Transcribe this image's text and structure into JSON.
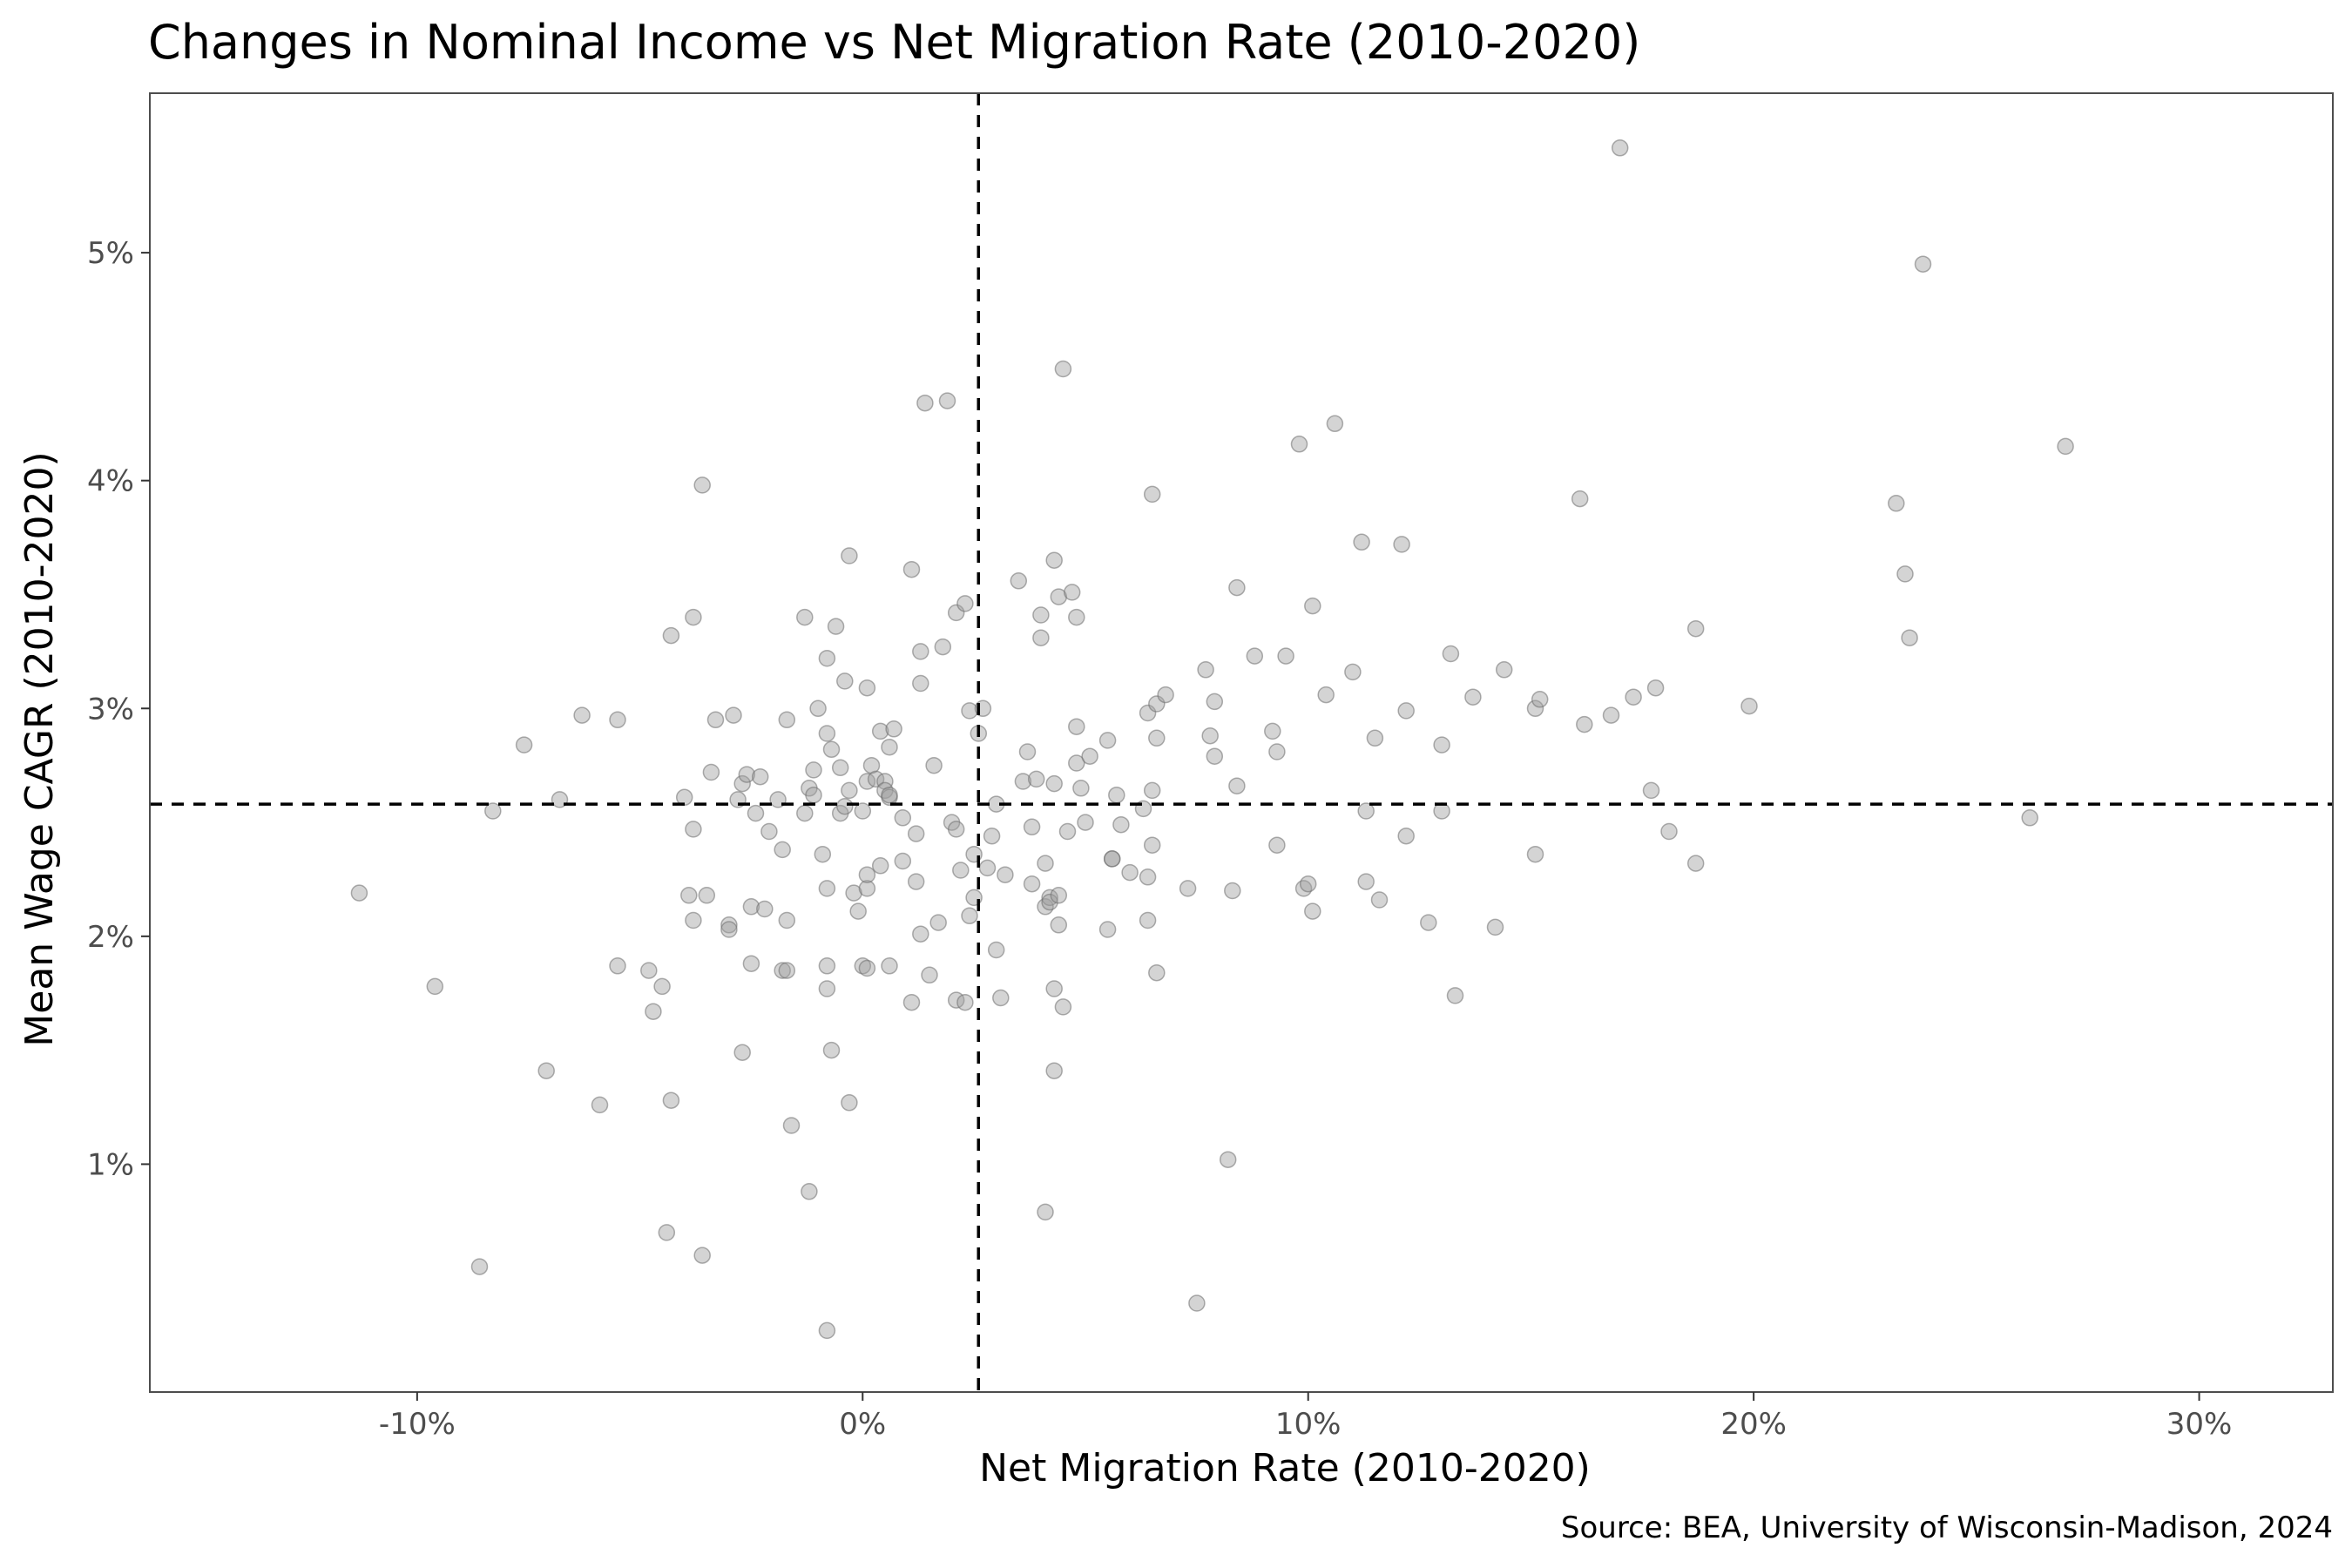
{
  "chart_data": {
    "type": "scatter",
    "title": "Changes in Nominal Income vs Net Migration Rate (2010-2020)",
    "xlabel": "Net Migration Rate (2010-2020)",
    "ylabel": "Mean Wage CAGR (2010-2020)",
    "caption": "Source: BEA, University of Wisconsin-Madison, 2024",
    "xlim": [
      -0.16,
      0.33
    ],
    "ylim": [
      0.0,
      0.057
    ],
    "x_ticks": [
      {
        "value": -0.1,
        "label": "-10%"
      },
      {
        "value": 0.0,
        "label": "0%"
      },
      {
        "value": 0.1,
        "label": "10%"
      },
      {
        "value": 0.2,
        "label": "20%"
      },
      {
        "value": 0.3,
        "label": "30%"
      }
    ],
    "y_ticks": [
      {
        "value": 0.01,
        "label": "1%"
      },
      {
        "value": 0.02,
        "label": "2%"
      },
      {
        "value": 0.03,
        "label": "3%"
      },
      {
        "value": 0.04,
        "label": "4%"
      },
      {
        "value": 0.05,
        "label": "5%"
      }
    ],
    "reference_lines": {
      "x": 0.026,
      "y": 0.0258
    },
    "grid": false,
    "point_color": "#a0a0a0",
    "points": [
      [
        -0.113,
        0.0219
      ],
      [
        -0.096,
        0.0178
      ],
      [
        -0.086,
        0.0055
      ],
      [
        -0.083,
        0.0255
      ],
      [
        -0.076,
        0.0284
      ],
      [
        -0.071,
        0.0141
      ],
      [
        -0.068,
        0.026
      ],
      [
        -0.063,
        0.0297
      ],
      [
        -0.059,
        0.0126
      ],
      [
        -0.055,
        0.0187
      ],
      [
        -0.055,
        0.0295
      ],
      [
        -0.048,
        0.0185
      ],
      [
        -0.047,
        0.0167
      ],
      [
        -0.045,
        0.0178
      ],
      [
        -0.044,
        0.007
      ],
      [
        -0.043,
        0.0332
      ],
      [
        -0.043,
        0.0128
      ],
      [
        -0.04,
        0.0261
      ],
      [
        -0.039,
        0.0218
      ],
      [
        -0.038,
        0.034
      ],
      [
        -0.038,
        0.0247
      ],
      [
        -0.038,
        0.0207
      ],
      [
        -0.036,
        0.0398
      ],
      [
        -0.036,
        0.006
      ],
      [
        -0.035,
        0.0218
      ],
      [
        -0.034,
        0.0272
      ],
      [
        -0.033,
        0.0295
      ],
      [
        -0.03,
        0.0205
      ],
      [
        -0.03,
        0.0203
      ],
      [
        -0.029,
        0.0297
      ],
      [
        -0.028,
        0.026
      ],
      [
        -0.027,
        0.0267
      ],
      [
        -0.027,
        0.0149
      ],
      [
        -0.026,
        0.0271
      ],
      [
        -0.025,
        0.0188
      ],
      [
        -0.025,
        0.0213
      ],
      [
        -0.024,
        0.0254
      ],
      [
        -0.023,
        0.027
      ],
      [
        -0.022,
        0.0212
      ],
      [
        -0.021,
        0.0246
      ],
      [
        -0.019,
        0.026
      ],
      [
        -0.018,
        0.0238
      ],
      [
        -0.018,
        0.0185
      ],
      [
        -0.017,
        0.0185
      ],
      [
        -0.017,
        0.0207
      ],
      [
        -0.017,
        0.0295
      ],
      [
        -0.016,
        0.0117
      ],
      [
        -0.013,
        0.0254
      ],
      [
        -0.013,
        0.034
      ],
      [
        -0.012,
        0.0265
      ],
      [
        -0.012,
        0.0088
      ],
      [
        -0.011,
        0.0273
      ],
      [
        -0.011,
        0.0262
      ],
      [
        -0.01,
        0.03
      ],
      [
        -0.009,
        0.0236
      ],
      [
        -0.008,
        0.0322
      ],
      [
        -0.008,
        0.0289
      ],
      [
        -0.008,
        0.0187
      ],
      [
        -0.008,
        0.0027
      ],
      [
        -0.008,
        0.0177
      ],
      [
        -0.008,
        0.0221
      ],
      [
        -0.007,
        0.015
      ],
      [
        -0.007,
        0.0282
      ],
      [
        -0.006,
        0.0336
      ],
      [
        -0.005,
        0.0254
      ],
      [
        -0.005,
        0.0274
      ],
      [
        -0.004,
        0.0257
      ],
      [
        -0.004,
        0.0312
      ],
      [
        -0.003,
        0.0264
      ],
      [
        -0.003,
        0.0367
      ],
      [
        -0.003,
        0.0127
      ],
      [
        -0.002,
        0.0219
      ],
      [
        -0.001,
        0.0211
      ],
      [
        0.0,
        0.0255
      ],
      [
        0.0,
        0.0187
      ],
      [
        0.001,
        0.0186
      ],
      [
        0.001,
        0.0221
      ],
      [
        0.001,
        0.0227
      ],
      [
        0.001,
        0.0268
      ],
      [
        0.001,
        0.0309
      ],
      [
        0.002,
        0.0275
      ],
      [
        0.003,
        0.0269
      ],
      [
        0.004,
        0.029
      ],
      [
        0.004,
        0.0231
      ],
      [
        0.005,
        0.0268
      ],
      [
        0.005,
        0.0264
      ],
      [
        0.006,
        0.0261
      ],
      [
        0.006,
        0.0187
      ],
      [
        0.006,
        0.0262
      ],
      [
        0.006,
        0.0283
      ],
      [
        0.007,
        0.0291
      ],
      [
        0.009,
        0.0233
      ],
      [
        0.009,
        0.0252
      ],
      [
        0.011,
        0.0361
      ],
      [
        0.011,
        0.0171
      ],
      [
        0.012,
        0.0245
      ],
      [
        0.012,
        0.0224
      ],
      [
        0.013,
        0.0201
      ],
      [
        0.013,
        0.0311
      ],
      [
        0.013,
        0.0325
      ],
      [
        0.014,
        0.0434
      ],
      [
        0.015,
        0.0183
      ],
      [
        0.016,
        0.0275
      ],
      [
        0.017,
        0.0206
      ],
      [
        0.018,
        0.0327
      ],
      [
        0.019,
        0.0435
      ],
      [
        0.02,
        0.025
      ],
      [
        0.021,
        0.0247
      ],
      [
        0.021,
        0.0172
      ],
      [
        0.021,
        0.0342
      ],
      [
        0.022,
        0.0229
      ],
      [
        0.023,
        0.0346
      ],
      [
        0.023,
        0.0171
      ],
      [
        0.024,
        0.0209
      ],
      [
        0.024,
        0.0299
      ],
      [
        0.025,
        0.0217
      ],
      [
        0.025,
        0.0236
      ],
      [
        0.026,
        0.0289
      ],
      [
        0.027,
        0.03
      ],
      [
        0.028,
        0.023
      ],
      [
        0.029,
        0.0244
      ],
      [
        0.03,
        0.0194
      ],
      [
        0.03,
        0.0258
      ],
      [
        0.031,
        0.0173
      ],
      [
        0.032,
        0.0227
      ],
      [
        0.035,
        0.0356
      ],
      [
        0.036,
        0.0268
      ],
      [
        0.037,
        0.0281
      ],
      [
        0.038,
        0.0223
      ],
      [
        0.038,
        0.0248
      ],
      [
        0.039,
        0.0269
      ],
      [
        0.04,
        0.0331
      ],
      [
        0.04,
        0.0341
      ],
      [
        0.041,
        0.0079
      ],
      [
        0.041,
        0.0232
      ],
      [
        0.041,
        0.0213
      ],
      [
        0.042,
        0.0217
      ],
      [
        0.042,
        0.0215
      ],
      [
        0.043,
        0.0177
      ],
      [
        0.043,
        0.0267
      ],
      [
        0.043,
        0.0141
      ],
      [
        0.043,
        0.0365
      ],
      [
        0.044,
        0.0205
      ],
      [
        0.044,
        0.0218
      ],
      [
        0.044,
        0.0349
      ],
      [
        0.045,
        0.0449
      ],
      [
        0.045,
        0.0169
      ],
      [
        0.046,
        0.0246
      ],
      [
        0.047,
        0.0351
      ],
      [
        0.048,
        0.034
      ],
      [
        0.048,
        0.0276
      ],
      [
        0.048,
        0.0292
      ],
      [
        0.049,
        0.0265
      ],
      [
        0.05,
        0.025
      ],
      [
        0.051,
        0.0279
      ],
      [
        0.055,
        0.0286
      ],
      [
        0.055,
        0.0203
      ],
      [
        0.056,
        0.0234
      ],
      [
        0.056,
        0.0234
      ],
      [
        0.057,
        0.0262
      ],
      [
        0.058,
        0.0249
      ],
      [
        0.06,
        0.0228
      ],
      [
        0.063,
        0.0256
      ],
      [
        0.064,
        0.0298
      ],
      [
        0.064,
        0.0226
      ],
      [
        0.064,
        0.0207
      ],
      [
        0.065,
        0.0264
      ],
      [
        0.065,
        0.024
      ],
      [
        0.065,
        0.0394
      ],
      [
        0.066,
        0.0287
      ],
      [
        0.066,
        0.0302
      ],
      [
        0.066,
        0.0184
      ],
      [
        0.068,
        0.0306
      ],
      [
        0.073,
        0.0221
      ],
      [
        0.075,
        0.0039
      ],
      [
        0.077,
        0.0317
      ],
      [
        0.078,
        0.0288
      ],
      [
        0.079,
        0.0279
      ],
      [
        0.079,
        0.0303
      ],
      [
        0.082,
        0.0102
      ],
      [
        0.083,
        0.022
      ],
      [
        0.084,
        0.0266
      ],
      [
        0.084,
        0.0353
      ],
      [
        0.088,
        0.0323
      ],
      [
        0.092,
        0.029
      ],
      [
        0.093,
        0.024
      ],
      [
        0.093,
        0.0281
      ],
      [
        0.095,
        0.0323
      ],
      [
        0.098,
        0.0416
      ],
      [
        0.099,
        0.0221
      ],
      [
        0.1,
        0.0223
      ],
      [
        0.101,
        0.0345
      ],
      [
        0.101,
        0.0211
      ],
      [
        0.104,
        0.0306
      ],
      [
        0.106,
        0.0425
      ],
      [
        0.11,
        0.0316
      ],
      [
        0.112,
        0.0373
      ],
      [
        0.113,
        0.0224
      ],
      [
        0.113,
        0.0255
      ],
      [
        0.115,
        0.0287
      ],
      [
        0.116,
        0.0216
      ],
      [
        0.121,
        0.0372
      ],
      [
        0.122,
        0.0299
      ],
      [
        0.122,
        0.0244
      ],
      [
        0.127,
        0.0206
      ],
      [
        0.13,
        0.0255
      ],
      [
        0.13,
        0.0284
      ],
      [
        0.132,
        0.0324
      ],
      [
        0.133,
        0.0174
      ],
      [
        0.137,
        0.0305
      ],
      [
        0.142,
        0.0204
      ],
      [
        0.144,
        0.0317
      ],
      [
        0.151,
        0.0236
      ],
      [
        0.151,
        0.03
      ],
      [
        0.152,
        0.0304
      ],
      [
        0.161,
        0.0392
      ],
      [
        0.162,
        0.0293
      ],
      [
        0.168,
        0.0297
      ],
      [
        0.17,
        0.0546
      ],
      [
        0.173,
        0.0305
      ],
      [
        0.177,
        0.0264
      ],
      [
        0.178,
        0.0309
      ],
      [
        0.181,
        0.0246
      ],
      [
        0.187,
        0.0232
      ],
      [
        0.187,
        0.0335
      ],
      [
        0.199,
        0.0301
      ],
      [
        0.232,
        0.039
      ],
      [
        0.234,
        0.0359
      ],
      [
        0.235,
        0.0331
      ],
      [
        0.238,
        0.0495
      ],
      [
        0.262,
        0.0252
      ],
      [
        0.27,
        0.0415
      ]
    ]
  }
}
